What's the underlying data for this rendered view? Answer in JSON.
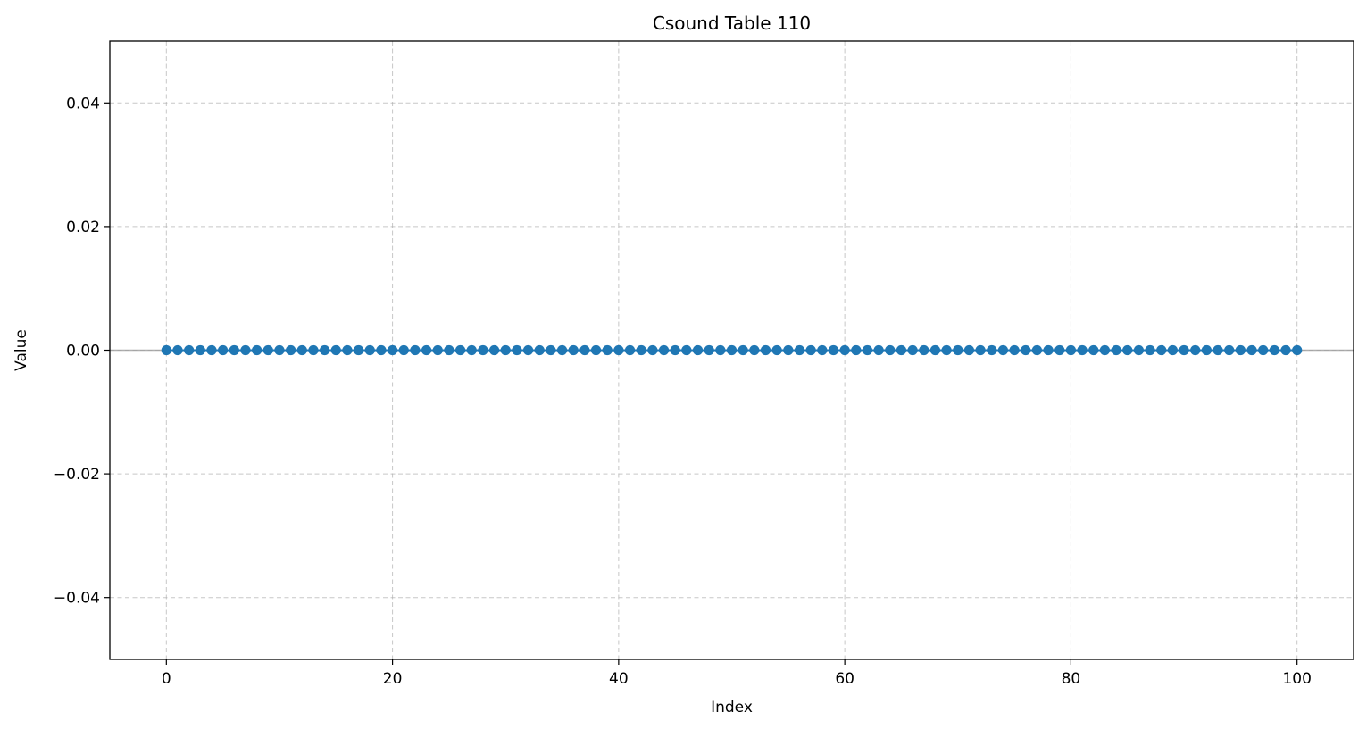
{
  "chart_data": {
    "type": "line",
    "title": "Csound Table 110",
    "xlabel": "Index",
    "ylabel": "Value",
    "xlim": [
      -5,
      105
    ],
    "ylim": [
      -0.05,
      0.05
    ],
    "x_ticks": [
      0,
      20,
      40,
      60,
      80,
      100
    ],
    "x_tick_labels": [
      "0",
      "20",
      "40",
      "60",
      "80",
      "100"
    ],
    "y_ticks": [
      0.04,
      0.02,
      0.0,
      -0.02,
      -0.04
    ],
    "y_tick_labels": [
      "0.04",
      "0.02",
      "0.00",
      "−0.02",
      "−0.04"
    ],
    "grid": true,
    "reference_line_y": 0,
    "series": [
      {
        "marker": "circle",
        "color": "#1f77b4",
        "x_start": 0,
        "x_end": 100,
        "x_step": 1,
        "constant_value": 0
      }
    ]
  },
  "colors": {
    "series": "#1f77b4",
    "grid": "#b0b0b0",
    "reference_line": "#a0a0a0",
    "axes": "#000000"
  }
}
